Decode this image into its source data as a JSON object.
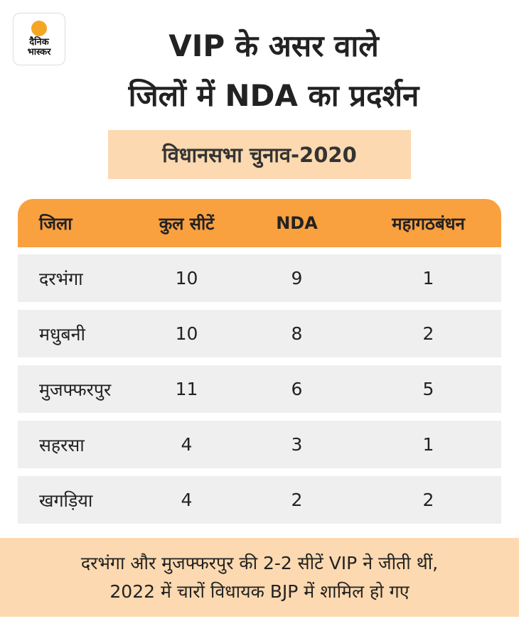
{
  "logo": {
    "line1": "दैनिक",
    "line2": "भास्कर"
  },
  "title": {
    "line1": "VIP के असर वाले",
    "line2": "जिलों में NDA का प्रदर्शन"
  },
  "subtitle": "विधानसभा चुनाव-2020",
  "table": {
    "headers": [
      "जिला",
      "कुल सीटें",
      "NDA",
      "महागठबंधन"
    ],
    "rows": [
      [
        "दरभंगा",
        "10",
        "9",
        "1"
      ],
      [
        "मधुबनी",
        "10",
        "8",
        "2"
      ],
      [
        "मुजफ्फरपुर",
        "11",
        "6",
        "5"
      ],
      [
        "सहरसा",
        "4",
        "3",
        "1"
      ],
      [
        "खगड़िया",
        "4",
        "2",
        "2"
      ]
    ]
  },
  "footer": {
    "line1": "दरभंगा और मुजफ्फरपुर की 2-2 सीटें VIP ने जीती थीं,",
    "line2": "2022 में चारों विधायक BJP में शामिल हो गए"
  },
  "colors": {
    "header": "#f9a03f",
    "highlight": "#fcd9b0",
    "row": "#efefef"
  }
}
